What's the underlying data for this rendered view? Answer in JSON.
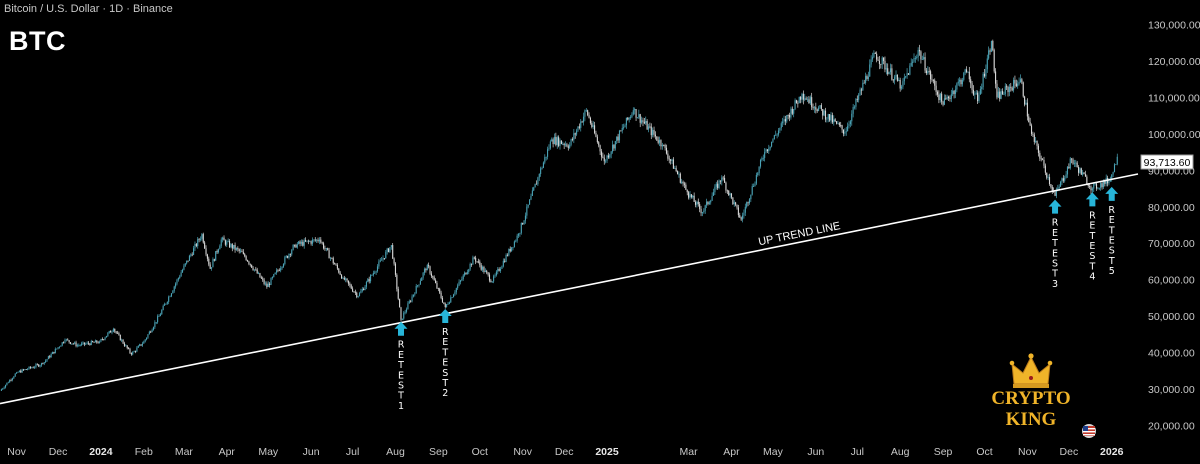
{
  "header": {
    "symbol": "Bitcoin / U.S. Dollar · 1D · Binance",
    "ticker": "BTC"
  },
  "current_price_label": "93,713.60",
  "trend_line_label": "UP TREND LINE",
  "retests": [
    {
      "label": "RETEST 1",
      "date": "2024-08-05",
      "price": 49000
    },
    {
      "label": "RETEST 2",
      "date": "2024-09-06",
      "price": 52500
    },
    {
      "label": "RETEST 3",
      "date": "2025-11-21",
      "price": 82500
    },
    {
      "label": "RETEST 4",
      "date": "2025-12-18",
      "price": 84500
    },
    {
      "label": "RETEST 5",
      "date": "2026-01-01",
      "price": 86000
    }
  ],
  "logo": {
    "line1": "CRYPTO",
    "line2": "KING"
  },
  "colors": {
    "background": "#000000",
    "up_candle": "#4aa3b6",
    "down_candle": "#d8d8d8",
    "arrow": "#27b5d9",
    "trend_line": "#ffffff",
    "logo_gold": "#f0b429"
  },
  "chart_data": {
    "type": "line",
    "series": [
      {
        "values": [
          {
            "date": "2023-10-20",
            "price": 29500
          },
          {
            "date": "2023-11-01",
            "price": 34500
          },
          {
            "date": "2023-11-20",
            "price": 37000
          },
          {
            "date": "2023-12-06",
            "price": 43500
          },
          {
            "date": "2023-12-15",
            "price": 42000
          },
          {
            "date": "2023-12-31",
            "price": 43000
          },
          {
            "date": "2024-01-10",
            "price": 46500
          },
          {
            "date": "2024-01-23",
            "price": 39500
          },
          {
            "date": "2024-02-01",
            "price": 43000
          },
          {
            "date": "2024-02-12",
            "price": 50000
          },
          {
            "date": "2024-02-28",
            "price": 62000
          },
          {
            "date": "2024-03-14",
            "price": 72500
          },
          {
            "date": "2024-03-20",
            "price": 63000
          },
          {
            "date": "2024-03-28",
            "price": 71000
          },
          {
            "date": "2024-04-13",
            "price": 67000
          },
          {
            "date": "2024-04-30",
            "price": 58000
          },
          {
            "date": "2024-05-20",
            "price": 69500
          },
          {
            "date": "2024-06-07",
            "price": 71000
          },
          {
            "date": "2024-06-24",
            "price": 60500
          },
          {
            "date": "2024-07-05",
            "price": 55500
          },
          {
            "date": "2024-07-29",
            "price": 69500
          },
          {
            "date": "2024-08-05",
            "price": 49000
          },
          {
            "date": "2024-08-24",
            "price": 64000
          },
          {
            "date": "2024-09-06",
            "price": 52500
          },
          {
            "date": "2024-09-27",
            "price": 66000
          },
          {
            "date": "2024-10-10",
            "price": 59500
          },
          {
            "date": "2024-10-29",
            "price": 72500
          },
          {
            "date": "2024-11-13",
            "price": 89000
          },
          {
            "date": "2024-11-22",
            "price": 98500
          },
          {
            "date": "2024-12-05",
            "price": 97000
          },
          {
            "date": "2024-12-17",
            "price": 106500
          },
          {
            "date": "2024-12-30",
            "price": 92500
          },
          {
            "date": "2025-01-20",
            "price": 106500
          },
          {
            "date": "2025-02-10",
            "price": 97000
          },
          {
            "date": "2025-02-28",
            "price": 84000
          },
          {
            "date": "2025-03-11",
            "price": 78500
          },
          {
            "date": "2025-03-25",
            "price": 88000
          },
          {
            "date": "2025-04-08",
            "price": 76500
          },
          {
            "date": "2025-04-25",
            "price": 95000
          },
          {
            "date": "2025-05-22",
            "price": 111000
          },
          {
            "date": "2025-06-22",
            "price": 100500
          },
          {
            "date": "2025-07-14",
            "price": 122000
          },
          {
            "date": "2025-08-02",
            "price": 113000
          },
          {
            "date": "2025-08-14",
            "price": 123000
          },
          {
            "date": "2025-09-01",
            "price": 108000
          },
          {
            "date": "2025-09-18",
            "price": 117000
          },
          {
            "date": "2025-09-26",
            "price": 109000
          },
          {
            "date": "2025-10-06",
            "price": 125500
          },
          {
            "date": "2025-10-10",
            "price": 110000
          },
          {
            "date": "2025-10-27",
            "price": 115000
          },
          {
            "date": "2025-11-04",
            "price": 100000
          },
          {
            "date": "2025-11-21",
            "price": 83000
          },
          {
            "date": "2025-12-03",
            "price": 93000
          },
          {
            "date": "2025-12-18",
            "price": 85000
          },
          {
            "date": "2025-12-31",
            "price": 87500
          },
          {
            "date": "2026-01-05",
            "price": 93713.6
          }
        ]
      }
    ],
    "trend_line": [
      {
        "date": "2023-10-20",
        "price": 26000
      },
      {
        "date": "2026-01-20",
        "price": 89000
      }
    ],
    "y_ticks": [
      "130,000.00",
      "120,000.00",
      "110,000.00",
      "100,000.00",
      "90,000.00",
      "80,000.00",
      "70,000.00",
      "60,000.00",
      "50,000.00",
      "40,000.00",
      "30,000.00",
      "20,000.00"
    ],
    "y_tick_values": [
      130000,
      120000,
      110000,
      100000,
      90000,
      80000,
      70000,
      60000,
      50000,
      40000,
      30000,
      20000
    ],
    "x_ticks": [
      {
        "label": "Nov",
        "date": "2023-11-01"
      },
      {
        "label": "Dec",
        "date": "2023-12-01"
      },
      {
        "label": "2024",
        "date": "2024-01-01",
        "year": true
      },
      {
        "label": "Feb",
        "date": "2024-02-01"
      },
      {
        "label": "Mar",
        "date": "2024-03-01"
      },
      {
        "label": "Apr",
        "date": "2024-04-01"
      },
      {
        "label": "May",
        "date": "2024-05-01"
      },
      {
        "label": "Jun",
        "date": "2024-06-01"
      },
      {
        "label": "Jul",
        "date": "2024-07-01"
      },
      {
        "label": "Aug",
        "date": "2024-08-01"
      },
      {
        "label": "Sep",
        "date": "2024-09-01"
      },
      {
        "label": "Oct",
        "date": "2024-10-01"
      },
      {
        "label": "Nov",
        "date": "2024-11-01"
      },
      {
        "label": "Dec",
        "date": "2024-12-01"
      },
      {
        "label": "2025",
        "date": "2025-01-01",
        "year": true
      },
      {
        "label": "Mar",
        "date": "2025-03-01"
      },
      {
        "label": "Apr",
        "date": "2025-04-01"
      },
      {
        "label": "May",
        "date": "2025-05-01"
      },
      {
        "label": "Jun",
        "date": "2025-06-01"
      },
      {
        "label": "Jul",
        "date": "2025-07-01"
      },
      {
        "label": "Aug",
        "date": "2025-08-01"
      },
      {
        "label": "Sep",
        "date": "2025-09-01"
      },
      {
        "label": "Oct",
        "date": "2025-10-01"
      },
      {
        "label": "Nov",
        "date": "2025-11-01"
      },
      {
        "label": "Dec",
        "date": "2025-12-01"
      },
      {
        "label": "2026",
        "date": "2026-01-01",
        "year": true
      }
    ],
    "ylim": [
      16000,
      134000
    ],
    "xlim": [
      "2023-10-20",
      "2026-01-20"
    ],
    "grid": false
  }
}
